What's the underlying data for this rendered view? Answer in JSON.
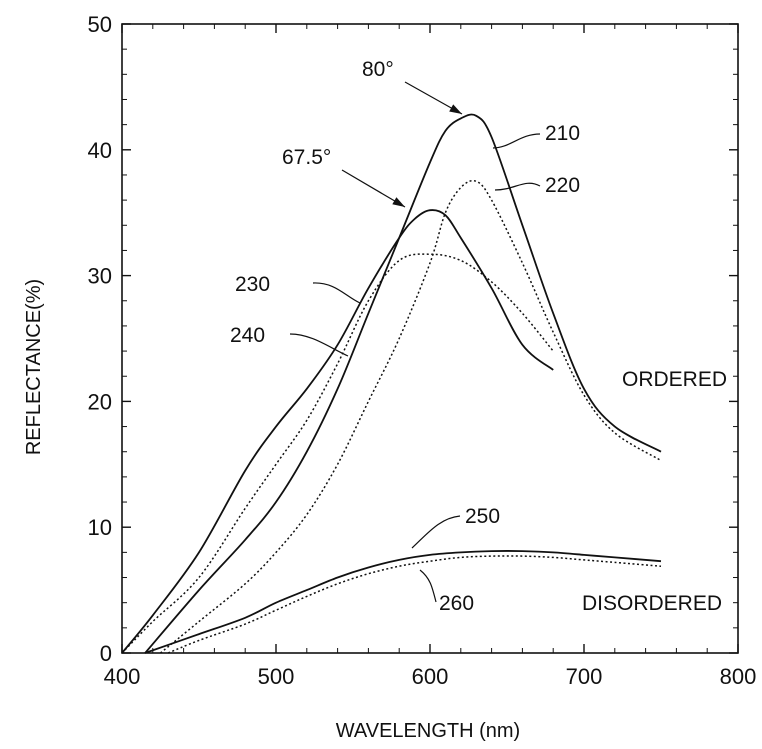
{
  "chart_data": {
    "type": "line",
    "title": "",
    "xlabel": "WAVELENGTH (nm)",
    "ylabel": "REFLECTANCE(%)",
    "xlim": [
      400,
      800
    ],
    "ylim": [
      0,
      50
    ],
    "xticks": [
      400,
      500,
      600,
      700,
      800
    ],
    "yticks": [
      0,
      10,
      20,
      30,
      40,
      50
    ],
    "grid": false,
    "series": [
      {
        "name": "210",
        "style": "solid",
        "x": [
          415,
          450,
          480,
          500,
          520,
          540,
          560,
          580,
          600,
          610,
          620,
          630,
          640,
          660,
          680,
          700,
          720,
          750
        ],
        "y": [
          0,
          5,
          9,
          12,
          16,
          21,
          27,
          33,
          39,
          41.5,
          42.5,
          42.7,
          41,
          34,
          27,
          21,
          18,
          16
        ]
      },
      {
        "name": "220",
        "style": "dotted",
        "x": [
          425,
          450,
          480,
          500,
          520,
          540,
          560,
          580,
          600,
          610,
          620,
          630,
          640,
          660,
          680,
          700,
          720,
          750
        ],
        "y": [
          0,
          2.5,
          5.5,
          8,
          11,
          15,
          20,
          25,
          31,
          35,
          37,
          37.5,
          36,
          31,
          25.5,
          20.5,
          17.5,
          15.3
        ]
      },
      {
        "name": "230",
        "style": "solid",
        "x": [
          400,
          420,
          450,
          480,
          500,
          520,
          540,
          560,
          580,
          590,
          600,
          610,
          620,
          640,
          660,
          680
        ],
        "y": [
          0,
          3,
          8,
          14.5,
          18,
          21,
          24.5,
          29,
          33,
          34.5,
          35.2,
          34.8,
          33,
          29,
          24.5,
          22.5
        ]
      },
      {
        "name": "240",
        "style": "dotted",
        "x": [
          400,
          420,
          450,
          480,
          500,
          520,
          540,
          560,
          580,
          600,
          620,
          640,
          660,
          680
        ],
        "y": [
          0,
          2.5,
          6,
          11.5,
          15,
          18.5,
          23,
          28,
          31.2,
          31.7,
          31.2,
          29.5,
          27,
          24
        ]
      },
      {
        "name": "250",
        "style": "solid",
        "x": [
          415,
          450,
          480,
          500,
          520,
          540,
          560,
          580,
          600,
          620,
          640,
          660,
          680,
          700,
          720,
          750
        ],
        "y": [
          0,
          1.5,
          2.8,
          4,
          5,
          6,
          6.8,
          7.4,
          7.8,
          8,
          8.1,
          8.1,
          8,
          7.8,
          7.6,
          7.3
        ]
      },
      {
        "name": "260",
        "style": "dotted",
        "x": [
          430,
          450,
          480,
          500,
          520,
          540,
          560,
          580,
          600,
          620,
          640,
          660,
          680,
          700,
          720,
          750
        ],
        "y": [
          0,
          1,
          2.3,
          3.4,
          4.5,
          5.5,
          6.3,
          6.9,
          7.3,
          7.6,
          7.7,
          7.7,
          7.6,
          7.4,
          7.2,
          6.9
        ]
      }
    ],
    "annotations": [
      {
        "text": "80°",
        "x": 560,
        "y": 46.5,
        "arrow_to": [
          625,
          42.7
        ]
      },
      {
        "text": "67.5°",
        "x": 515,
        "y": 38.5,
        "arrow_to": [
          592,
          35
        ]
      },
      {
        "text": "ORDERED",
        "x": 683,
        "y": 21.5
      },
      {
        "text": "DISORDERED",
        "x": 670,
        "y": 3.2
      }
    ]
  }
}
